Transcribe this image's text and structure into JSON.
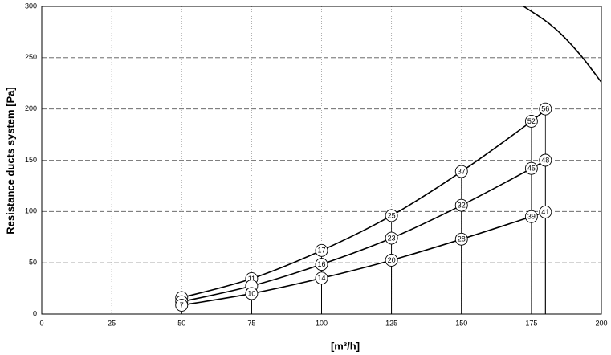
{
  "chart_data": {
    "type": "line",
    "x_label": "[m³/h]",
    "y_label": "Resistance ducts system [Pa]",
    "xlim": [
      0,
      200
    ],
    "xticks": [
      0,
      25,
      50,
      75,
      100,
      125,
      150,
      175,
      200
    ],
    "ylim": [
      0,
      300
    ],
    "yticks": [
      0,
      50,
      100,
      150,
      200,
      250,
      300
    ],
    "grid": true,
    "series": [
      {
        "color": "#000000",
        "x": [
          50,
          75,
          100,
          125,
          150,
          175,
          180
        ],
        "values": [
          16,
          34.5,
          62,
          96,
          139,
          188,
          200
        ],
        "labels": [
          null,
          "11",
          "17",
          "25",
          "37",
          "52",
          "56"
        ]
      },
      {
        "color": "#000000",
        "x": [
          50,
          75,
          100,
          125,
          150,
          175,
          180
        ],
        "values": [
          12,
          27.4,
          48.5,
          74,
          106,
          142,
          150
        ],
        "labels": [
          null,
          null,
          "16",
          "23",
          "32",
          "45",
          "48"
        ]
      },
      {
        "color": "#000000",
        "x": [
          50,
          75,
          100,
          125,
          150,
          175,
          180
        ],
        "values": [
          8.6,
          20,
          35,
          52.5,
          73,
          95,
          99.5
        ],
        "labels": [
          "7",
          "10",
          "14",
          "20",
          "28",
          "39",
          "41"
        ]
      }
    ],
    "fan_curve": {
      "color": "#000000",
      "x": [
        172.2,
        180,
        186,
        193,
        200
      ],
      "values": [
        300,
        286,
        272,
        251,
        226
      ]
    }
  }
}
